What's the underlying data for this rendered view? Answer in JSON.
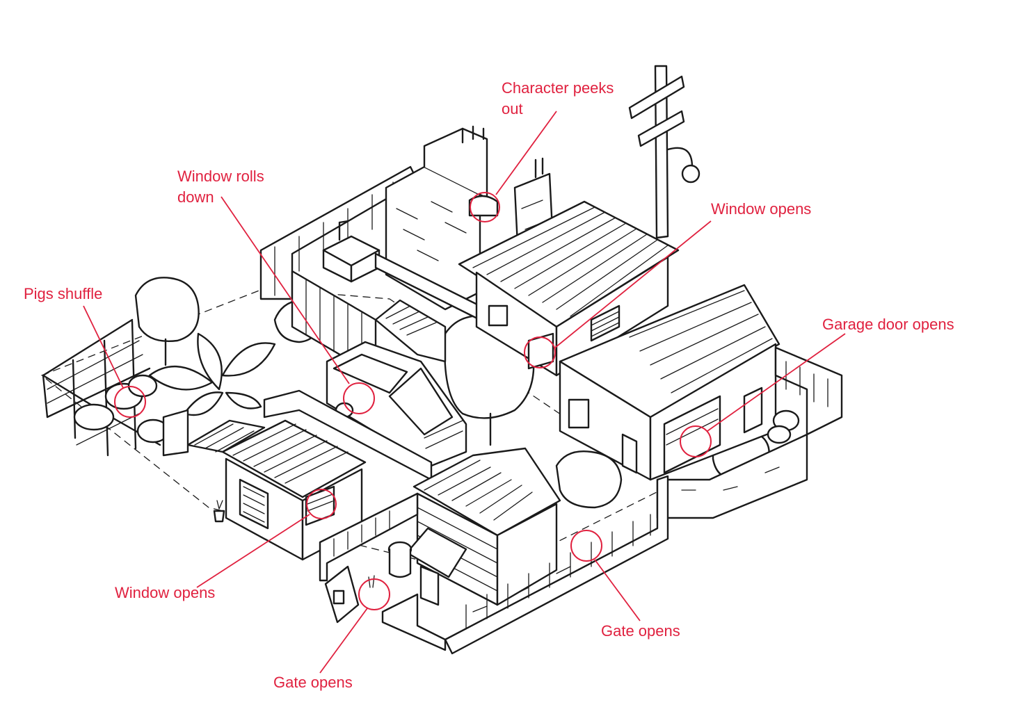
{
  "colors": {
    "annotation": "#e0213f",
    "line_art": "#1a1a1a",
    "background": "#ffffff"
  },
  "annotations": [
    {
      "id": "character-peeks-out",
      "text": "Character peeks\nout"
    },
    {
      "id": "window-rolls-down",
      "text": "Window rolls\ndown"
    },
    {
      "id": "window-opens-upper",
      "text": "Window opens"
    },
    {
      "id": "pigs-shuffle",
      "text": "Pigs shuffle"
    },
    {
      "id": "garage-door-opens",
      "text": "Garage door opens"
    },
    {
      "id": "window-opens-lower",
      "text": "Window opens"
    },
    {
      "id": "gate-opens-right",
      "text": "Gate opens"
    },
    {
      "id": "gate-opens-left",
      "text": "Gate opens"
    }
  ]
}
